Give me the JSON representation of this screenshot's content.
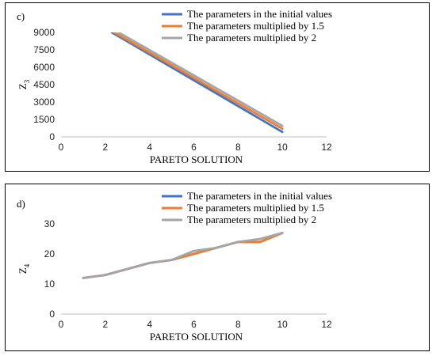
{
  "chart_data": [
    {
      "type": "line",
      "panel_label": "c)",
      "xlabel": "PARETO SOLUTION",
      "ylabel": "Z",
      "ylabel_sub": "3",
      "xlim": [
        0,
        12
      ],
      "ylim": [
        0,
        9000
      ],
      "xticks": [
        "0",
        "2",
        "4",
        "6",
        "8",
        "10",
        "12"
      ],
      "yticks": [
        "0",
        "1500",
        "3000",
        "4500",
        "6000",
        "7500",
        "9000"
      ],
      "legend_position": "top-right",
      "grid": false,
      "series": [
        {
          "name": "The parameters in the initial values",
          "color": "#4472C4",
          "x": [
            2.3,
            10
          ],
          "y": [
            9000,
            420
          ]
        },
        {
          "name": "The parameters multiplied by 1.5",
          "color": "#ED7D31",
          "x": [
            2.4,
            10
          ],
          "y": [
            9000,
            700
          ]
        },
        {
          "name": "The parameters multiplied by 2",
          "color": "#A5A5A5",
          "x": [
            2.6,
            10
          ],
          "y": [
            9000,
            950
          ]
        }
      ]
    },
    {
      "type": "line",
      "panel_label": "d)",
      "xlabel": "PARETO SOLUTION",
      "ylabel": "Z",
      "ylabel_sub": "4",
      "xlim": [
        0,
        12
      ],
      "ylim": [
        0,
        30
      ],
      "xticks": [
        "0",
        "2",
        "4",
        "6",
        "8",
        "10",
        "12"
      ],
      "yticks": [
        "0",
        "10",
        "20",
        "30"
      ],
      "legend_position": "top-right",
      "grid": false,
      "series": [
        {
          "name": "The parameters in the initial values",
          "color": "#4472C4",
          "x": [
            1,
            2,
            3,
            4,
            5,
            6,
            7,
            8,
            9,
            10
          ],
          "y": [
            12,
            13,
            15,
            17,
            18,
            20,
            22,
            24,
            24,
            27
          ]
        },
        {
          "name": "The parameters multiplied by 1.5",
          "color": "#ED7D31",
          "x": [
            1,
            2,
            3,
            4,
            5,
            6,
            7,
            8,
            9,
            10
          ],
          "y": [
            12,
            13,
            15,
            17,
            18,
            20,
            22,
            24,
            24,
            27
          ]
        },
        {
          "name": "The parameters multiplied by 2",
          "color": "#A5A5A5",
          "x": [
            1,
            2,
            3,
            4,
            5,
            6,
            7,
            8,
            9,
            10
          ],
          "y": [
            12,
            13,
            15,
            17,
            18,
            21,
            22,
            24,
            25,
            27
          ]
        }
      ]
    }
  ]
}
